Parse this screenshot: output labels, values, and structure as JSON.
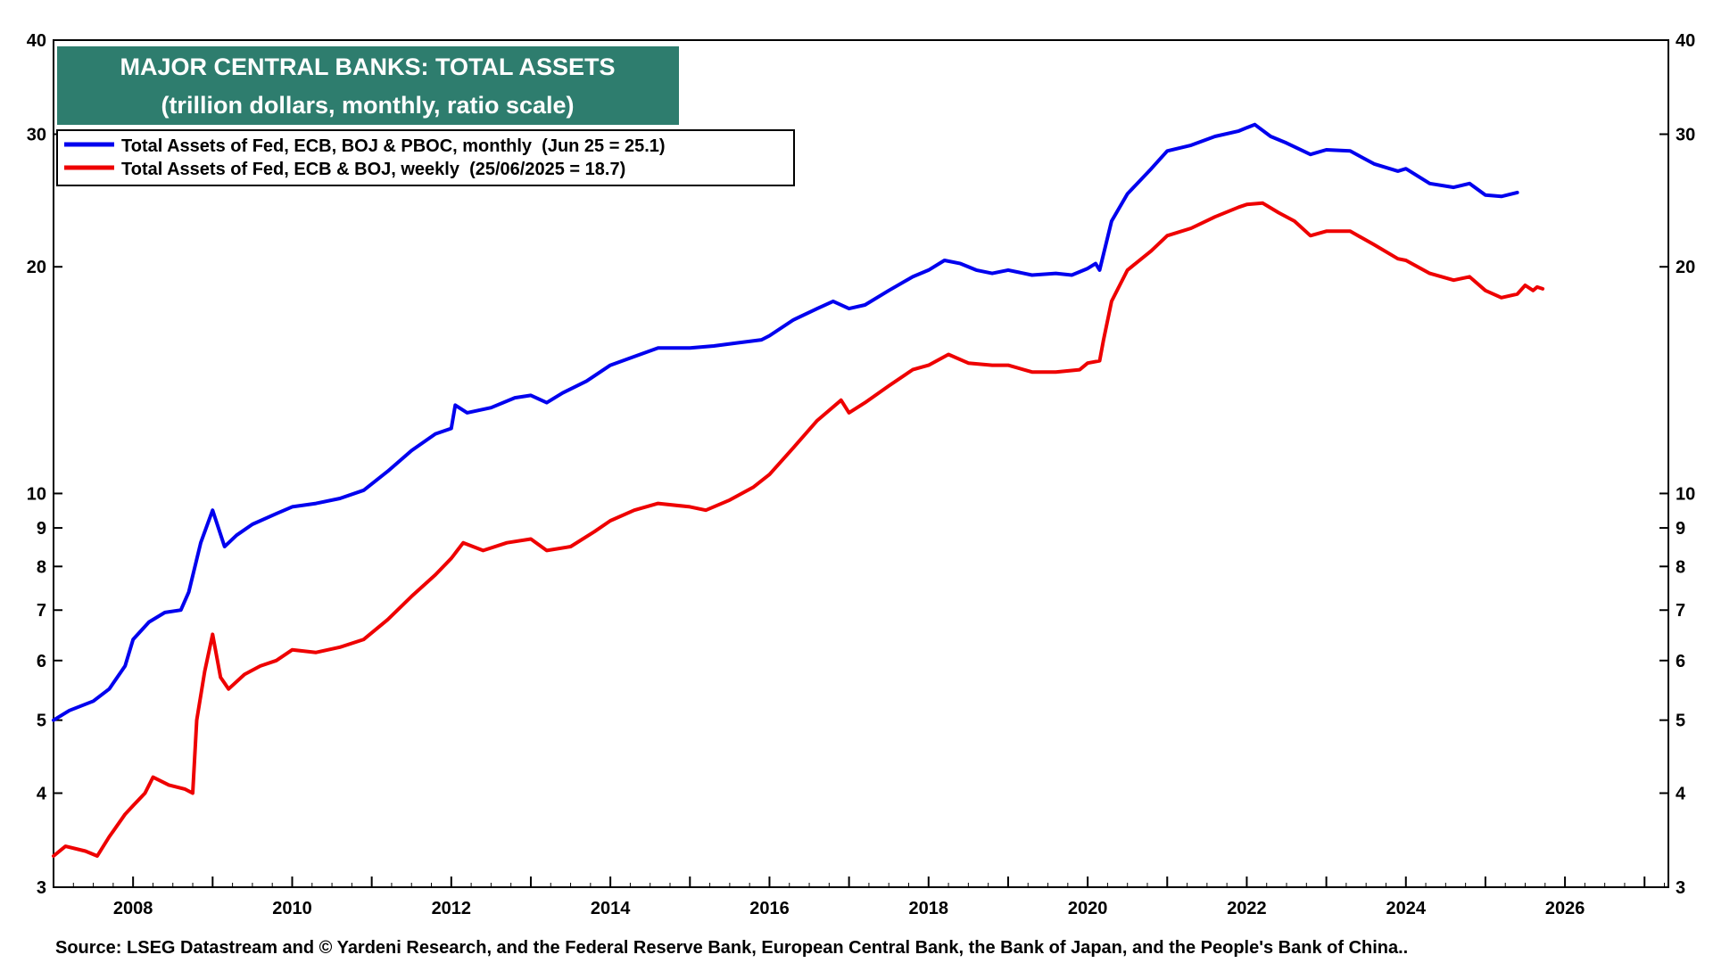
{
  "chart_data": {
    "type": "line",
    "title": "MAJOR CENTRAL BANKS: TOTAL ASSETS",
    "subtitle": "(trillion dollars, monthly, ratio scale)",
    "y_scale": "log",
    "ylim": [
      3,
      40
    ],
    "xlim": [
      2007.0,
      2027.3
    ],
    "grid": false,
    "legend_position": "top-left",
    "x_ticks": [
      "2008",
      "2010",
      "2012",
      "2014",
      "2016",
      "2018",
      "2020",
      "2022",
      "2024",
      "2026"
    ],
    "y_ticks": [
      "3",
      "4",
      "5",
      "6",
      "7",
      "8",
      "9",
      "10",
      "20",
      "30",
      "40"
    ],
    "source": "Source: LSEG Datastream and © Yardeni Research, and the Federal Reserve Bank, European Central Bank, the Bank of Japan, and the People's Bank of China..",
    "colors": {
      "title_bg": "#2e7d6e",
      "title_text": "#ffffff",
      "series1": "#0000ee",
      "series2": "#ee0000"
    },
    "series": [
      {
        "name": "Total Assets of Fed, ECB, BOJ & PBOC, monthly  (Jun 25 = 25.1)",
        "color": "#0000ee",
        "points": [
          [
            2007.0,
            5.0
          ],
          [
            2007.2,
            5.15
          ],
          [
            2007.5,
            5.3
          ],
          [
            2007.7,
            5.5
          ],
          [
            2007.9,
            5.9
          ],
          [
            2008.0,
            6.4
          ],
          [
            2008.2,
            6.75
          ],
          [
            2008.4,
            6.95
          ],
          [
            2008.6,
            7.0
          ],
          [
            2008.7,
            7.4
          ],
          [
            2008.85,
            8.6
          ],
          [
            2009.0,
            9.5
          ],
          [
            2009.15,
            8.5
          ],
          [
            2009.3,
            8.8
          ],
          [
            2009.5,
            9.1
          ],
          [
            2009.8,
            9.4
          ],
          [
            2010.0,
            9.6
          ],
          [
            2010.3,
            9.7
          ],
          [
            2010.6,
            9.85
          ],
          [
            2010.9,
            10.1
          ],
          [
            2011.2,
            10.7
          ],
          [
            2011.5,
            11.4
          ],
          [
            2011.8,
            12.0
          ],
          [
            2012.0,
            12.2
          ],
          [
            2012.05,
            13.1
          ],
          [
            2012.2,
            12.8
          ],
          [
            2012.5,
            13.0
          ],
          [
            2012.8,
            13.4
          ],
          [
            2013.0,
            13.5
          ],
          [
            2013.2,
            13.2
          ],
          [
            2013.4,
            13.6
          ],
          [
            2013.7,
            14.1
          ],
          [
            2014.0,
            14.8
          ],
          [
            2014.3,
            15.2
          ],
          [
            2014.6,
            15.6
          ],
          [
            2015.0,
            15.6
          ],
          [
            2015.3,
            15.7
          ],
          [
            2015.6,
            15.85
          ],
          [
            2015.9,
            16.0
          ],
          [
            2016.0,
            16.2
          ],
          [
            2016.3,
            17.0
          ],
          [
            2016.6,
            17.6
          ],
          [
            2016.8,
            18.0
          ],
          [
            2017.0,
            17.6
          ],
          [
            2017.2,
            17.8
          ],
          [
            2017.5,
            18.6
          ],
          [
            2017.8,
            19.4
          ],
          [
            2018.0,
            19.8
          ],
          [
            2018.2,
            20.4
          ],
          [
            2018.4,
            20.2
          ],
          [
            2018.6,
            19.8
          ],
          [
            2018.8,
            19.6
          ],
          [
            2019.0,
            19.8
          ],
          [
            2019.3,
            19.5
          ],
          [
            2019.6,
            19.6
          ],
          [
            2019.8,
            19.5
          ],
          [
            2020.0,
            19.9
          ],
          [
            2020.1,
            20.2
          ],
          [
            2020.15,
            19.8
          ],
          [
            2020.3,
            23.0
          ],
          [
            2020.5,
            25.0
          ],
          [
            2020.8,
            27.0
          ],
          [
            2021.0,
            28.5
          ],
          [
            2021.3,
            29.0
          ],
          [
            2021.6,
            29.8
          ],
          [
            2021.9,
            30.3
          ],
          [
            2022.0,
            30.6
          ],
          [
            2022.1,
            30.9
          ],
          [
            2022.3,
            29.8
          ],
          [
            2022.5,
            29.2
          ],
          [
            2022.8,
            28.2
          ],
          [
            2023.0,
            28.6
          ],
          [
            2023.3,
            28.5
          ],
          [
            2023.6,
            27.4
          ],
          [
            2023.9,
            26.8
          ],
          [
            2024.0,
            27.0
          ],
          [
            2024.3,
            25.8
          ],
          [
            2024.6,
            25.5
          ],
          [
            2024.8,
            25.8
          ],
          [
            2025.0,
            24.9
          ],
          [
            2025.2,
            24.8
          ],
          [
            2025.4,
            25.1
          ]
        ]
      },
      {
        "name": "Total Assets of Fed, ECB & BOJ, weekly  (25/06/2025 = 18.7)",
        "color": "#ee0000",
        "points": [
          [
            2007.0,
            3.3
          ],
          [
            2007.15,
            3.4
          ],
          [
            2007.4,
            3.35
          ],
          [
            2007.55,
            3.3
          ],
          [
            2007.7,
            3.5
          ],
          [
            2007.9,
            3.75
          ],
          [
            2008.0,
            3.85
          ],
          [
            2008.15,
            4.0
          ],
          [
            2008.25,
            4.2
          ],
          [
            2008.45,
            4.1
          ],
          [
            2008.65,
            4.05
          ],
          [
            2008.75,
            4.0
          ],
          [
            2008.8,
            5.0
          ],
          [
            2008.9,
            5.8
          ],
          [
            2009.0,
            6.5
          ],
          [
            2009.1,
            5.7
          ],
          [
            2009.2,
            5.5
          ],
          [
            2009.4,
            5.75
          ],
          [
            2009.6,
            5.9
          ],
          [
            2009.8,
            6.0
          ],
          [
            2010.0,
            6.2
          ],
          [
            2010.3,
            6.15
          ],
          [
            2010.6,
            6.25
          ],
          [
            2010.9,
            6.4
          ],
          [
            2011.2,
            6.8
          ],
          [
            2011.5,
            7.3
          ],
          [
            2011.8,
            7.8
          ],
          [
            2012.0,
            8.2
          ],
          [
            2012.15,
            8.6
          ],
          [
            2012.4,
            8.4
          ],
          [
            2012.7,
            8.6
          ],
          [
            2013.0,
            8.7
          ],
          [
            2013.2,
            8.4
          ],
          [
            2013.5,
            8.5
          ],
          [
            2013.8,
            8.9
          ],
          [
            2014.0,
            9.2
          ],
          [
            2014.3,
            9.5
          ],
          [
            2014.6,
            9.7
          ],
          [
            2015.0,
            9.6
          ],
          [
            2015.2,
            9.5
          ],
          [
            2015.5,
            9.8
          ],
          [
            2015.8,
            10.2
          ],
          [
            2016.0,
            10.6
          ],
          [
            2016.3,
            11.5
          ],
          [
            2016.6,
            12.5
          ],
          [
            2016.9,
            13.3
          ],
          [
            2017.0,
            12.8
          ],
          [
            2017.2,
            13.2
          ],
          [
            2017.5,
            13.9
          ],
          [
            2017.8,
            14.6
          ],
          [
            2018.0,
            14.8
          ],
          [
            2018.25,
            15.3
          ],
          [
            2018.5,
            14.9
          ],
          [
            2018.8,
            14.8
          ],
          [
            2019.0,
            14.8
          ],
          [
            2019.3,
            14.5
          ],
          [
            2019.6,
            14.5
          ],
          [
            2019.9,
            14.6
          ],
          [
            2020.0,
            14.9
          ],
          [
            2020.15,
            15.0
          ],
          [
            2020.2,
            16.0
          ],
          [
            2020.3,
            18.0
          ],
          [
            2020.5,
            19.8
          ],
          [
            2020.8,
            21.0
          ],
          [
            2021.0,
            22.0
          ],
          [
            2021.3,
            22.5
          ],
          [
            2021.6,
            23.3
          ],
          [
            2021.9,
            24.0
          ],
          [
            2022.0,
            24.2
          ],
          [
            2022.2,
            24.3
          ],
          [
            2022.4,
            23.6
          ],
          [
            2022.6,
            23.0
          ],
          [
            2022.8,
            22.0
          ],
          [
            2023.0,
            22.3
          ],
          [
            2023.3,
            22.3
          ],
          [
            2023.6,
            21.4
          ],
          [
            2023.9,
            20.5
          ],
          [
            2024.0,
            20.4
          ],
          [
            2024.3,
            19.6
          ],
          [
            2024.6,
            19.2
          ],
          [
            2024.8,
            19.4
          ],
          [
            2025.0,
            18.6
          ],
          [
            2025.2,
            18.2
          ],
          [
            2025.4,
            18.4
          ],
          [
            2025.5,
            18.9
          ],
          [
            2025.6,
            18.6
          ],
          [
            2025.65,
            18.8
          ],
          [
            2025.72,
            18.7
          ]
        ]
      }
    ]
  }
}
